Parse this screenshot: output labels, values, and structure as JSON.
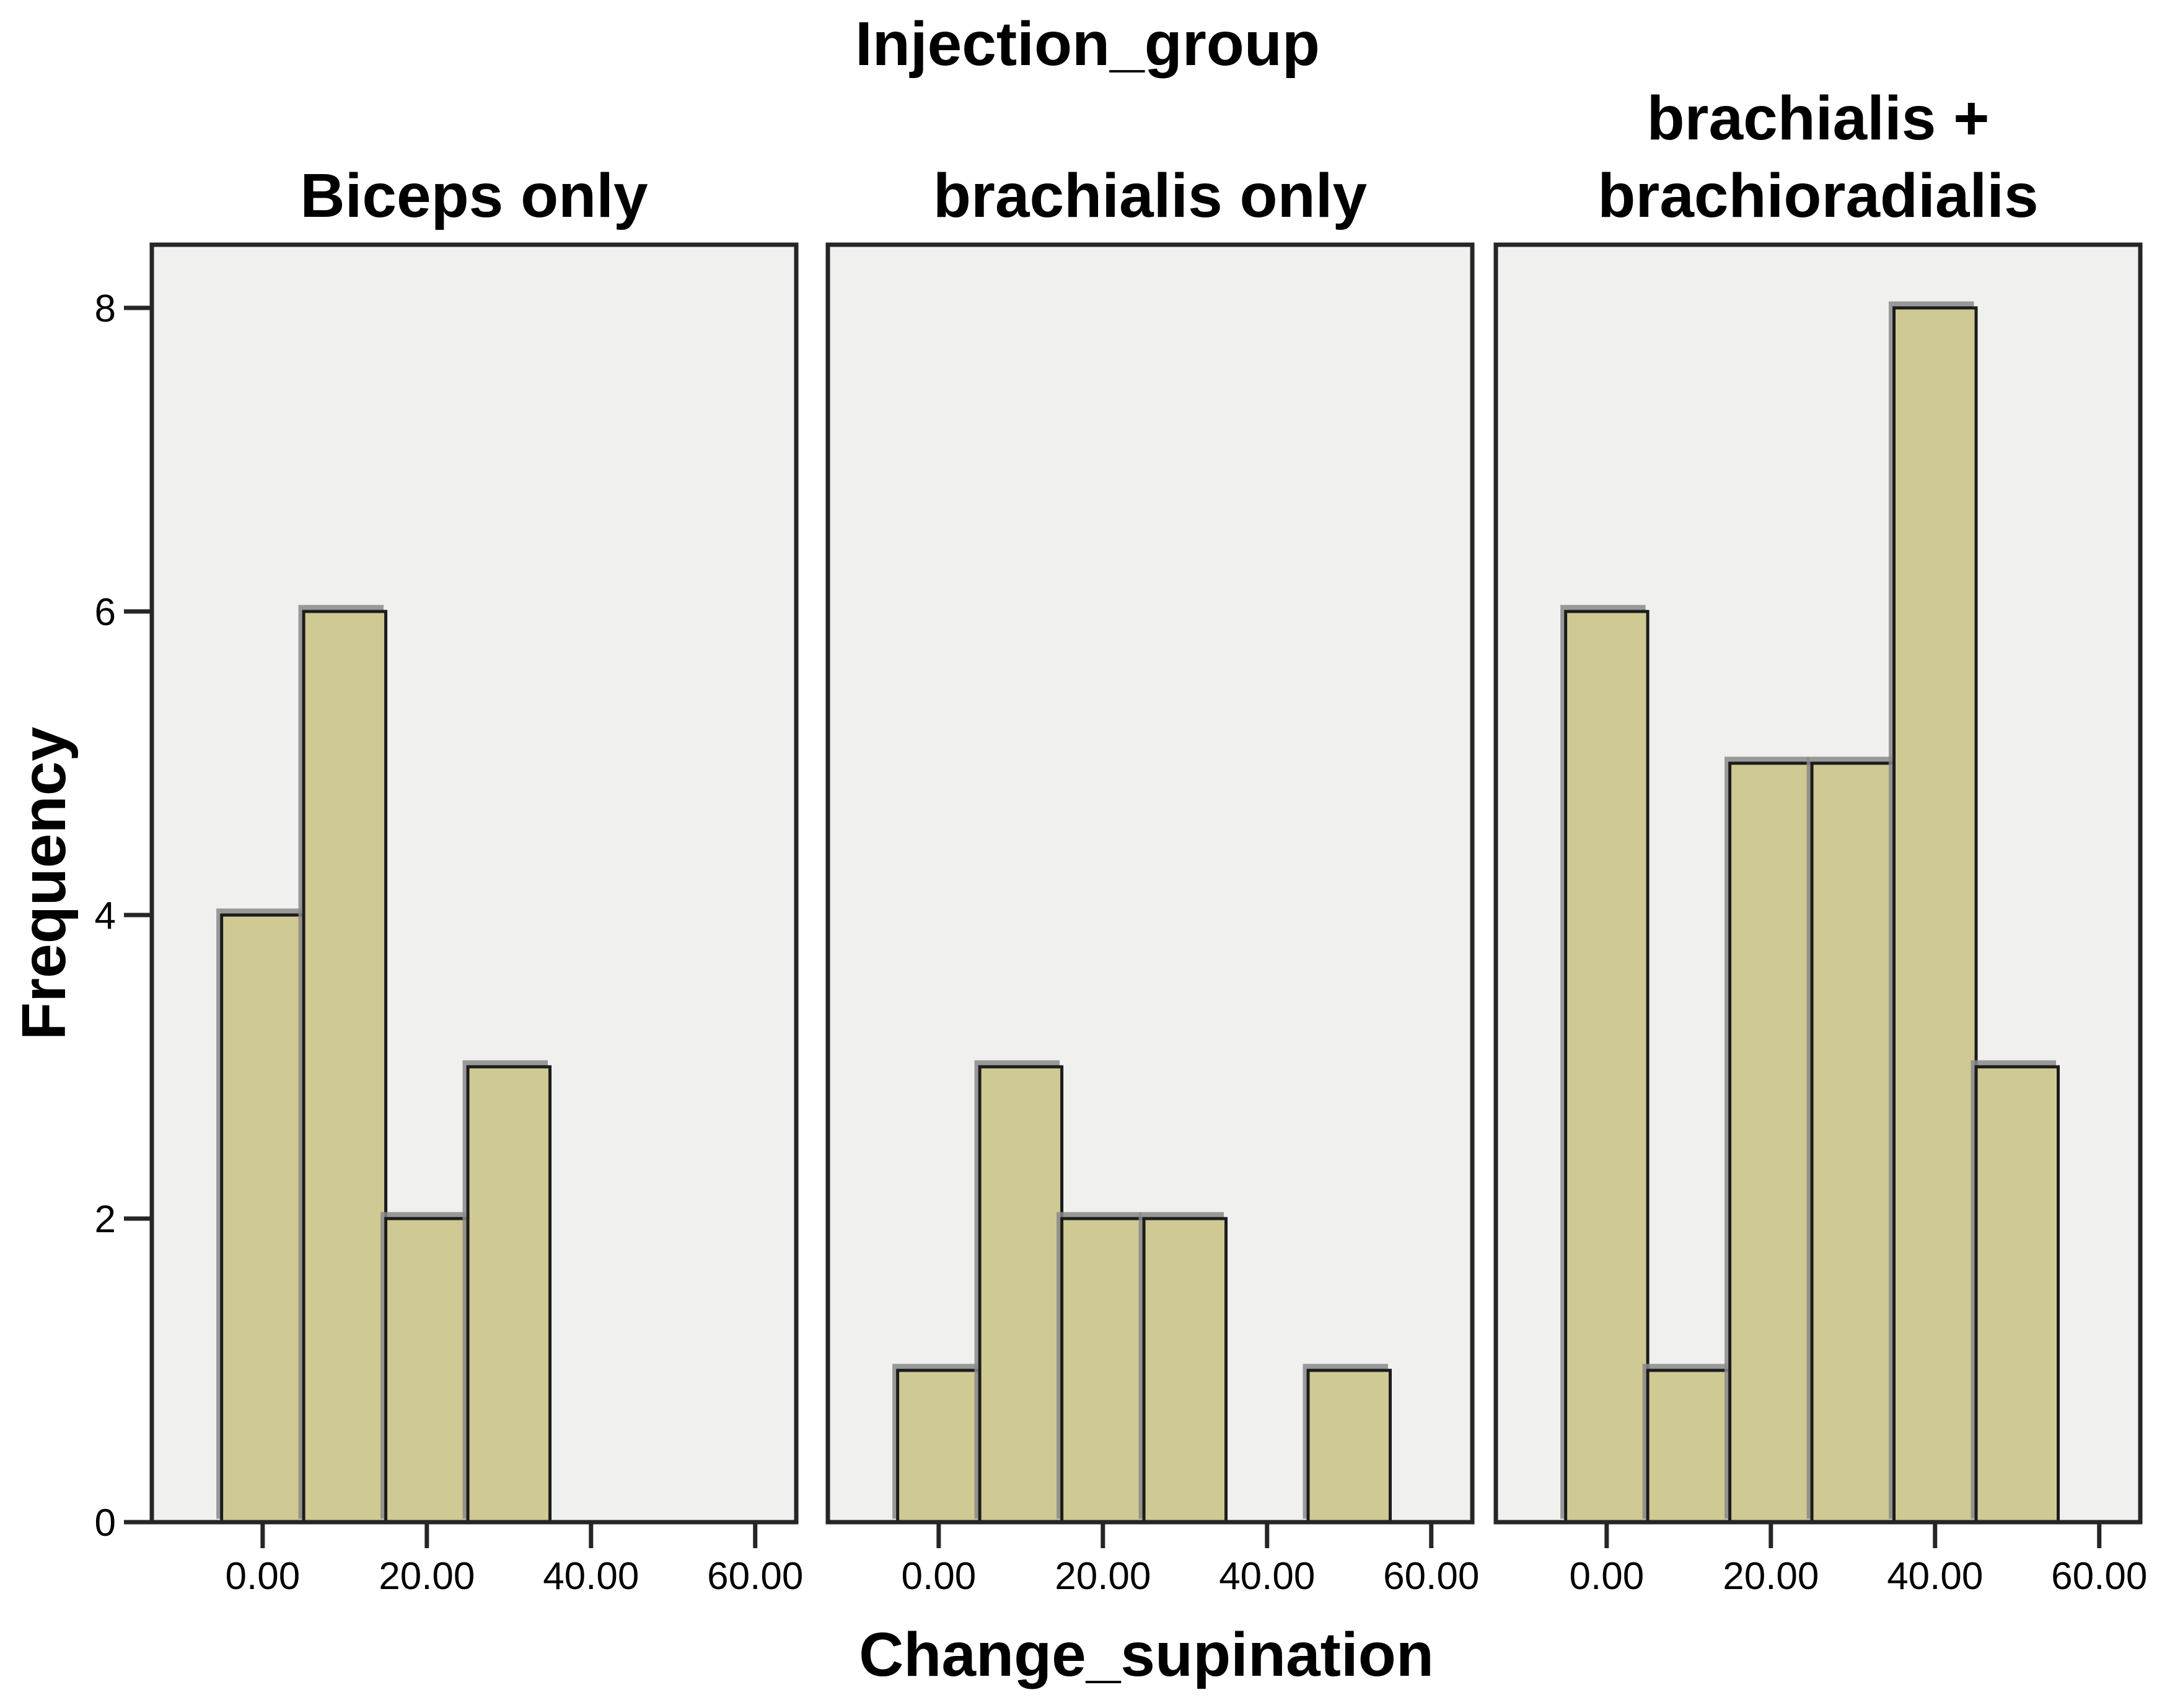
{
  "chart_data": {
    "type": "bar",
    "subtype": "paneled-histogram",
    "title": "Injection_group",
    "xlabel": "Change_supination",
    "ylabel": "Frequency",
    "bin_width": 10,
    "x_ticks": [
      0,
      20,
      40,
      60
    ],
    "x_tick_labels": [
      "0.00",
      "20.00",
      "40.00",
      "60.00"
    ],
    "y_ticks": [
      0,
      2,
      4,
      6,
      8
    ],
    "y_tick_labels": [
      "0",
      "2",
      "4",
      "6",
      "8"
    ],
    "xlim": [
      -13.5,
      65
    ],
    "ylim": [
      0,
      8.4
    ],
    "grid": false,
    "legend": false,
    "panels": [
      {
        "label": "Biceps only",
        "label_lines": [
          "Biceps only"
        ],
        "bins": [
          {
            "x0": -5,
            "x1": 5,
            "count": 4
          },
          {
            "x0": 5,
            "x1": 15,
            "count": 6
          },
          {
            "x0": 15,
            "x1": 25,
            "count": 2
          },
          {
            "x0": 25,
            "x1": 35,
            "count": 3
          }
        ]
      },
      {
        "label": "brachialis only",
        "label_lines": [
          "brachialis only"
        ],
        "bins": [
          {
            "x0": -5,
            "x1": 5,
            "count": 1
          },
          {
            "x0": 5,
            "x1": 15,
            "count": 3
          },
          {
            "x0": 15,
            "x1": 25,
            "count": 2
          },
          {
            "x0": 25,
            "x1": 35,
            "count": 2
          },
          {
            "x0": 45,
            "x1": 55,
            "count": 1
          }
        ]
      },
      {
        "label": "brachialis + brachioradialis",
        "label_lines": [
          "brachialis +",
          "brachioradialis"
        ],
        "bins": [
          {
            "x0": -5,
            "x1": 5,
            "count": 6
          },
          {
            "x0": 5,
            "x1": 15,
            "count": 1
          },
          {
            "x0": 15,
            "x1": 25,
            "count": 5
          },
          {
            "x0": 25,
            "x1": 35,
            "count": 5
          },
          {
            "x0": 35,
            "x1": 45,
            "count": 8
          },
          {
            "x0": 45,
            "x1": 55,
            "count": 3
          }
        ]
      }
    ],
    "colors": {
      "bar_fill": "#cfc993",
      "bar_border": "#1a1a1a",
      "bar_shadow": "#8a8a8a",
      "panel_bg": "#f0f0ef",
      "panel_border": "#262626",
      "tick": "#262626",
      "text": "#000000",
      "background": "#ffffff"
    }
  }
}
